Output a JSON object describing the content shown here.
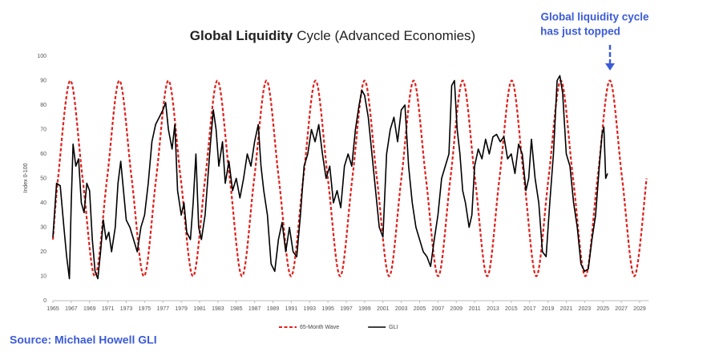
{
  "chart_data": {
    "type": "line",
    "title": {
      "bold": "Global Liquidity",
      "rest": "Cycle (Advanced Economies)"
    },
    "annotation": [
      "Global liquidity cycle",
      "has just topped"
    ],
    "ylabel": "Index 0-100",
    "source": "Source: Michael Howell GLI",
    "legend": "bottom",
    "xlim": [
      1965,
      2030
    ],
    "ylim": [
      0,
      100
    ],
    "xticks": [
      1965,
      1967,
      1969,
      1971,
      1973,
      1975,
      1977,
      1979,
      1981,
      1983,
      1985,
      1987,
      1989,
      1991,
      1993,
      1995,
      1997,
      1999,
      2001,
      2003,
      2005,
      2007,
      2009,
      2011,
      2013,
      2015,
      2017,
      2019,
      2021,
      2023,
      2025,
      2027,
      2029
    ],
    "yticks": [
      0,
      10,
      20,
      30,
      40,
      50,
      60,
      70,
      80,
      90,
      100
    ],
    "series": [
      {
        "name": "65-Month Wave",
        "color": "#e0201b",
        "dashed": true,
        "smooth": true,
        "x": [
          1965.0,
          1965.56,
          1966.9,
          1968.24,
          1969.58,
          1970.91,
          1972.25,
          1973.59,
          1974.93,
          1976.26,
          1977.6,
          1978.94,
          1980.28,
          1981.61,
          1982.95,
          1984.29,
          1985.63,
          1986.96,
          1988.3,
          1989.64,
          1990.98,
          1992.31,
          1993.65,
          1994.99,
          1996.33,
          1997.66,
          1999.0,
          2000.34,
          2001.68,
          2003.01,
          2004.35,
          2005.69,
          2007.03,
          2008.36,
          2009.7,
          2011.04,
          2012.38,
          2013.71,
          2015.05,
          2016.39,
          2017.73,
          2019.06,
          2020.4,
          2021.74,
          2023.08,
          2024.41,
          2025.75,
          2027.09,
          2028.43,
          2029.76
        ],
        "values": [
          25,
          50,
          90,
          50,
          10,
          50,
          90,
          50,
          10,
          50,
          90,
          50,
          10,
          50,
          90,
          50,
          10,
          50,
          90,
          50,
          10,
          50,
          90,
          50,
          10,
          50,
          90,
          50,
          10,
          50,
          90,
          50,
          10,
          50,
          90,
          50,
          10,
          50,
          90,
          50,
          10,
          50,
          90,
          50,
          10,
          50,
          90,
          50,
          10,
          50
        ]
      },
      {
        "name": "GLI",
        "color": "#000000",
        "dashed": false,
        "smooth": false,
        "x": [
          1965.0,
          1965.4,
          1965.8,
          1966.2,
          1966.5,
          1966.8,
          1967.0,
          1967.2,
          1967.5,
          1967.8,
          1968.1,
          1968.4,
          1968.7,
          1969.0,
          1969.3,
          1969.6,
          1969.9,
          1970.2,
          1970.5,
          1970.8,
          1971.1,
          1971.4,
          1971.8,
          1972.1,
          1972.4,
          1972.7,
          1973.0,
          1973.4,
          1973.8,
          1974.2,
          1974.6,
          1975.0,
          1975.4,
          1975.8,
          1976.2,
          1976.6,
          1977.0,
          1977.3,
          1977.6,
          1978.0,
          1978.3,
          1978.6,
          1979.0,
          1979.3,
          1979.6,
          1980.0,
          1980.3,
          1980.6,
          1980.9,
          1981.2,
          1981.6,
          1981.9,
          1982.2,
          1982.5,
          1982.8,
          1983.1,
          1983.5,
          1983.8,
          1984.2,
          1984.6,
          1985.0,
          1985.4,
          1985.8,
          1986.2,
          1986.6,
          1987.0,
          1987.4,
          1987.7,
          1988.0,
          1988.4,
          1988.8,
          1989.2,
          1989.6,
          1990.0,
          1990.4,
          1990.8,
          1991.2,
          1991.6,
          1992.0,
          1992.4,
          1992.8,
          1993.2,
          1993.6,
          1994.0,
          1994.4,
          1994.8,
          1995.2,
          1995.6,
          1996.0,
          1996.4,
          1996.8,
          1997.2,
          1997.6,
          1998.0,
          1998.4,
          1998.7,
          1999.0,
          1999.4,
          1999.8,
          2000.2,
          2000.6,
          2001.0,
          2001.4,
          2001.8,
          2002.2,
          2002.6,
          2003.0,
          2003.4,
          2003.8,
          2004.2,
          2004.6,
          2005.0,
          2005.4,
          2005.8,
          2006.2,
          2006.6,
          2007.0,
          2007.4,
          2007.8,
          2008.2,
          2008.5,
          2008.8,
          2009.1,
          2009.4,
          2009.7,
          2010.0,
          2010.4,
          2010.7,
          2011.0,
          2011.4,
          2011.8,
          2012.2,
          2012.6,
          2013.0,
          2013.4,
          2013.8,
          2014.2,
          2014.6,
          2015.0,
          2015.4,
          2015.8,
          2016.2,
          2016.6,
          2016.9,
          2017.2,
          2017.6,
          2018.0,
          2018.4,
          2018.8,
          2019.2,
          2019.6,
          2020.0,
          2020.3,
          2020.6,
          2021.0,
          2021.4,
          2021.8,
          2022.2,
          2022.6,
          2023.0,
          2023.4,
          2023.8,
          2024.2,
          2024.6,
          2024.9,
          2025.1,
          2025.3,
          2025.5
        ],
        "values": [
          26,
          48,
          47,
          30,
          18,
          9,
          40,
          64,
          55,
          58,
          40,
          36,
          48,
          45,
          25,
          12,
          9,
          20,
          33,
          25,
          28,
          20,
          30,
          48,
          57,
          45,
          33,
          30,
          25,
          20,
          30,
          35,
          48,
          65,
          72,
          75,
          78,
          81,
          70,
          62,
          72,
          45,
          35,
          40,
          28,
          25,
          40,
          60,
          30,
          25,
          35,
          50,
          65,
          78,
          70,
          55,
          65,
          48,
          57,
          45,
          50,
          42,
          50,
          60,
          55,
          65,
          72,
          55,
          45,
          35,
          15,
          12,
          25,
          32,
          20,
          30,
          20,
          18,
          35,
          55,
          60,
          70,
          65,
          72,
          60,
          50,
          55,
          40,
          45,
          38,
          55,
          60,
          55,
          70,
          80,
          86,
          84,
          75,
          60,
          45,
          30,
          26,
          60,
          70,
          75,
          65,
          78,
          80,
          55,
          40,
          30,
          25,
          20,
          18,
          14,
          25,
          35,
          50,
          55,
          60,
          88,
          90,
          70,
          60,
          45,
          40,
          30,
          35,
          55,
          62,
          58,
          66,
          60,
          67,
          68,
          65,
          67,
          58,
          60,
          52,
          64,
          60,
          45,
          50,
          66,
          50,
          40,
          20,
          18,
          40,
          60,
          90,
          92,
          85,
          60,
          55,
          40,
          30,
          15,
          12,
          13,
          25,
          35,
          55,
          68,
          71,
          50,
          52
        ]
      }
    ]
  }
}
